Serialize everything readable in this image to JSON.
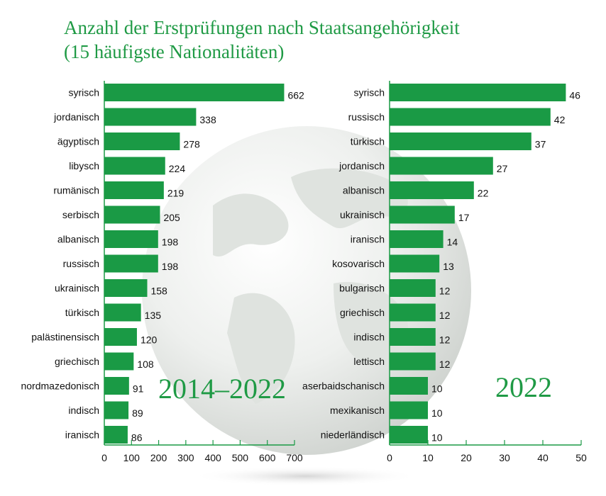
{
  "title": {
    "line1": "Anzahl der Erstprüfungen nach Staatsangehörigkeit",
    "line2": "(15 häufigste Nationalitäten)"
  },
  "colors": {
    "bar": "#1a9a45",
    "title": "#1f9a45",
    "axis": "#1a9a45"
  },
  "chart_data": [
    {
      "type": "bar",
      "orientation": "horizontal",
      "annotation": "2014–2022",
      "categories": [
        "syrisch",
        "jordanisch",
        "ägyptisch",
        "libysch",
        "rumänisch",
        "serbisch",
        "albanisch",
        "russisch",
        "ukrainisch",
        "türkisch",
        "palästinensisch",
        "griechisch",
        "nordmazedonisch",
        "indisch",
        "iranisch"
      ],
      "values": [
        662,
        338,
        278,
        224,
        219,
        205,
        198,
        198,
        158,
        135,
        120,
        108,
        91,
        89,
        86
      ],
      "xlim": [
        0,
        700
      ],
      "xticks": [
        0,
        100,
        200,
        300,
        400,
        500,
        600,
        700
      ],
      "xlabel": "",
      "ylabel": "",
      "grid": false
    },
    {
      "type": "bar",
      "orientation": "horizontal",
      "annotation": "2022",
      "categories": [
        "syrisch",
        "russisch",
        "türkisch",
        "jordanisch",
        "albanisch",
        "ukrainisch",
        "iranisch",
        "kosovarisch",
        "bulgarisch",
        "griechisch",
        "indisch",
        "lettisch",
        "aserbaidschanisch",
        "mexikanisch",
        "niederländisch"
      ],
      "values": [
        46,
        42,
        37,
        27,
        22,
        17,
        14,
        13,
        12,
        12,
        12,
        12,
        10,
        10,
        10
      ],
      "xlim": [
        0,
        50
      ],
      "xticks": [
        0,
        10,
        20,
        30,
        40,
        50
      ],
      "xlabel": "",
      "ylabel": "",
      "grid": false
    }
  ]
}
